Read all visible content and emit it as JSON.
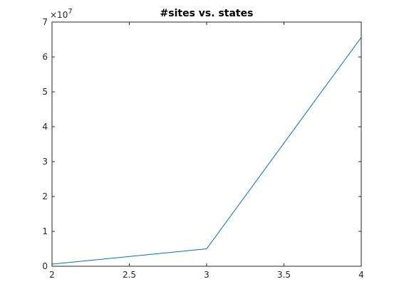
{
  "chart_data": {
    "type": "line",
    "title": "#sites vs. states",
    "xlabel": "",
    "ylabel": "",
    "xlim": [
      2,
      4
    ],
    "ylim": [
      0,
      70000000
    ],
    "grid": false,
    "x_ticks": [
      2,
      2.5,
      3,
      3.5,
      4
    ],
    "x_tick_labels": [
      "2",
      "2.5",
      "3",
      "3.5",
      "4"
    ],
    "y_ticks": [
      0,
      10000000,
      20000000,
      30000000,
      40000000,
      50000000,
      60000000,
      70000000
    ],
    "y_tick_labels": [
      "0",
      "1",
      "2",
      "3",
      "4",
      "5",
      "6",
      "7"
    ],
    "y_exponent_label": {
      "base": "×10",
      "power": "7"
    },
    "series": [
      {
        "color": "#0072BD",
        "x": [
          2,
          3,
          4
        ],
        "y": [
          600000,
          5000000,
          65600000
        ]
      }
    ]
  }
}
